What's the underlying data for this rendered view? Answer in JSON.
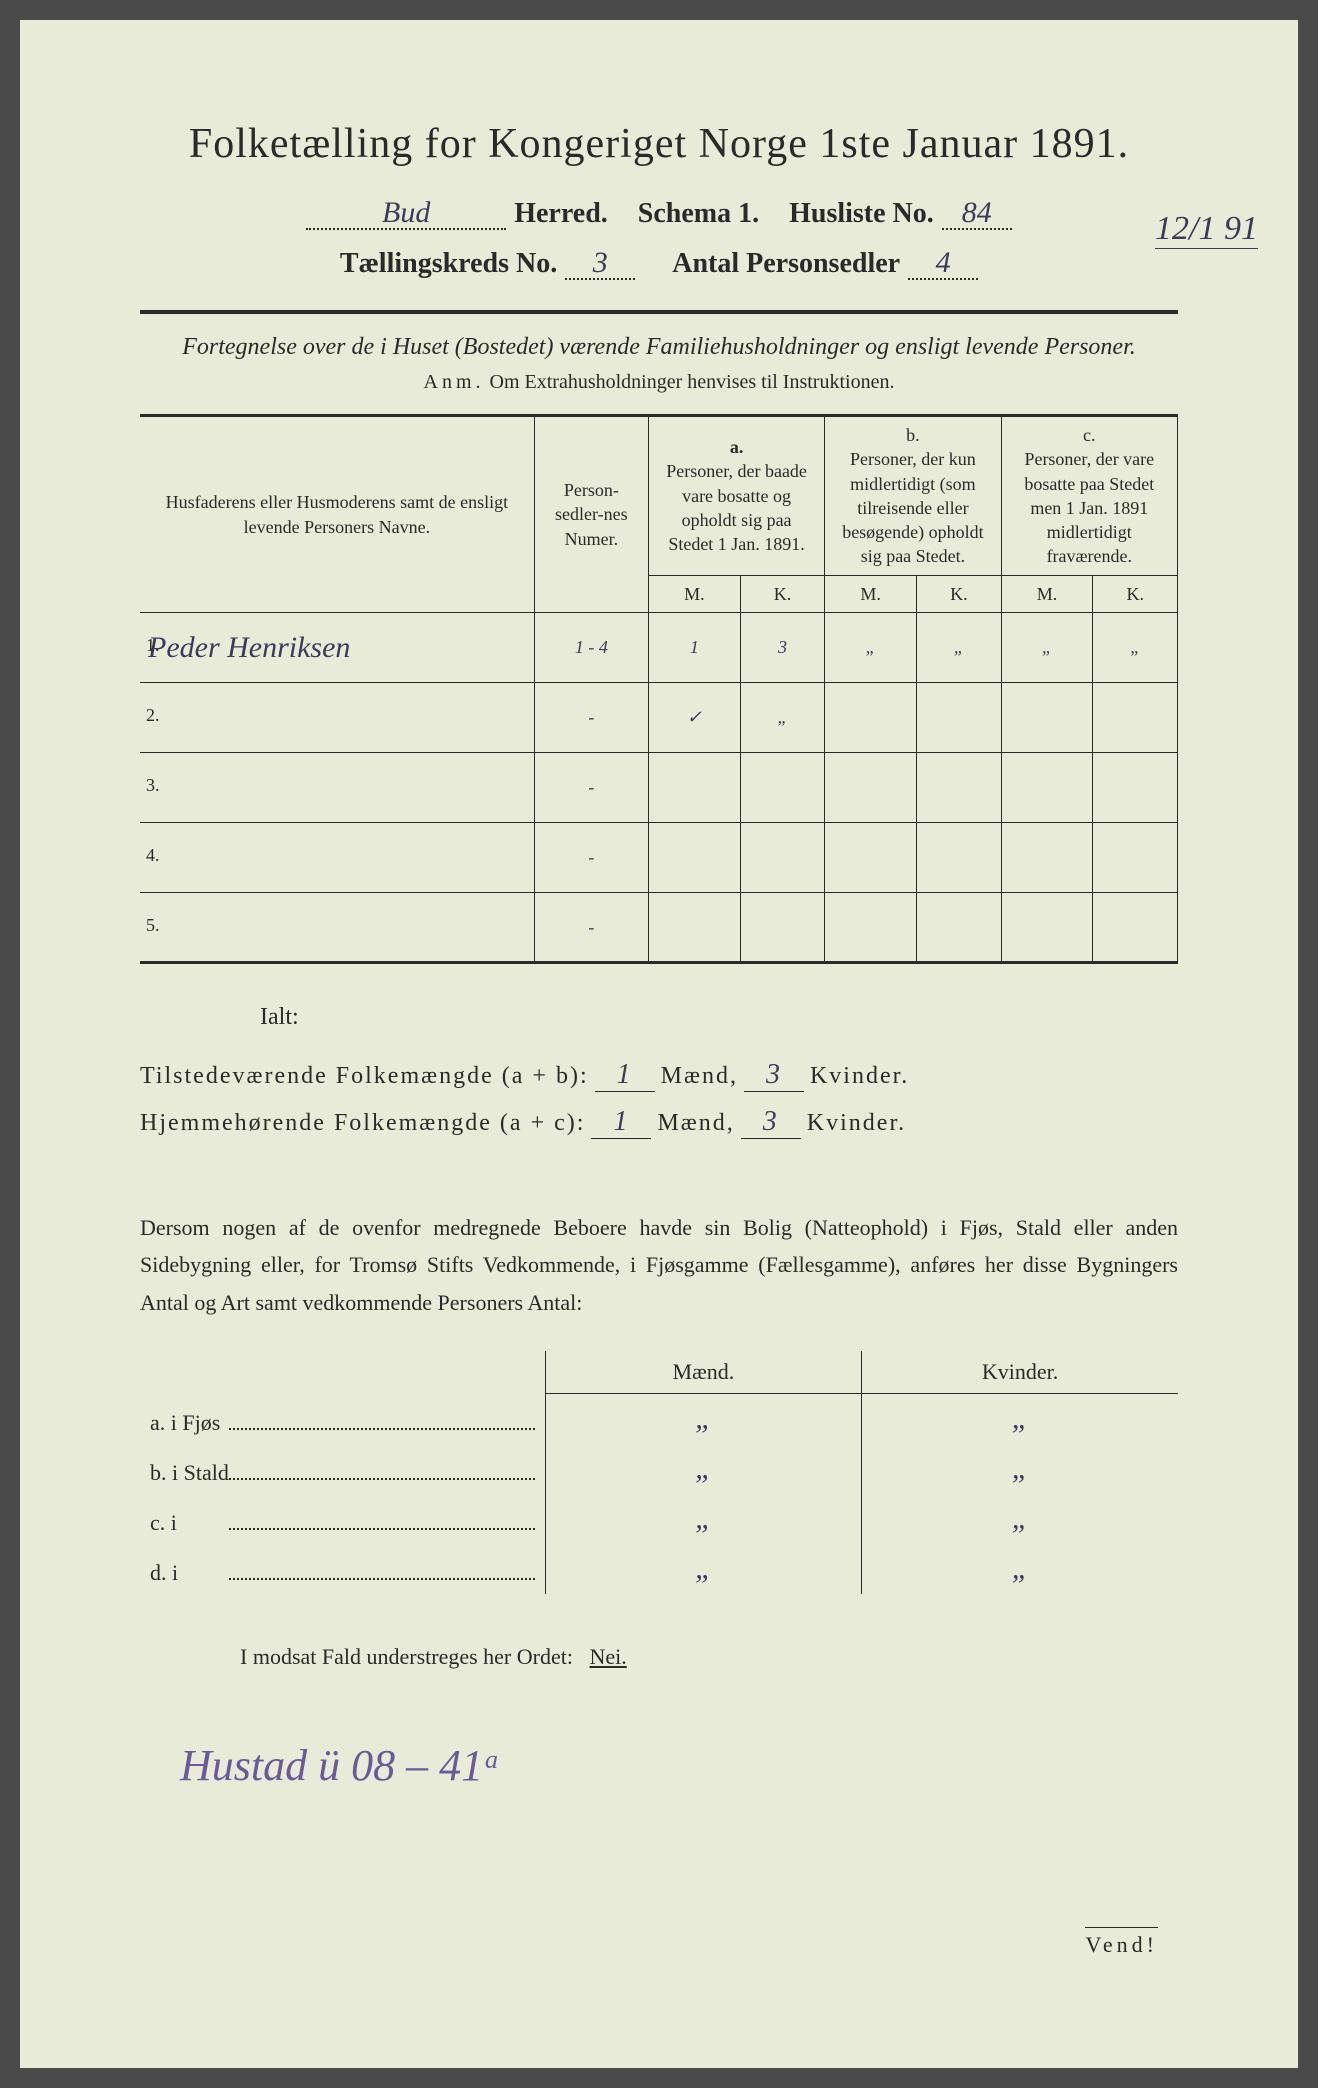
{
  "colors": {
    "paper": "#e8ebd8",
    "ink": "#2a2a2a",
    "handwriting": "#3a3a5a",
    "handwriting_purple": "#6a5a9a"
  },
  "title": "Folketælling for Kongeriget Norge 1ste Januar 1891.",
  "header": {
    "herred_value": "Bud",
    "herred_label": "Herred.",
    "schema_label": "Schema 1.",
    "husliste_label": "Husliste No.",
    "husliste_value": "84",
    "kreds_label": "Tællingskreds No.",
    "kreds_value": "3",
    "antal_label": "Antal Personsedler",
    "antal_value": "4"
  },
  "margin_note": "12/1 91",
  "subtitle": "Fortegnelse over de i Huset (Bostedet) værende Familiehusholdninger og ensligt levende Personer.",
  "anm_label": "Anm.",
  "anm_text": "Om Extrahusholdninger henvises til Instruktionen.",
  "table": {
    "col_name": "Husfaderens eller Husmoderens samt de ensligt levende Personers Navne.",
    "col_num": "Person-sedler-nes Numer.",
    "col_a_label": "a.",
    "col_a": "Personer, der baade vare bosatte og opholdt sig paa Stedet 1 Jan. 1891.",
    "col_b_label": "b.",
    "col_b": "Personer, der kun midlertidigt (som tilreisende eller besøgende) opholdt sig paa Stedet.",
    "col_c_label": "c.",
    "col_c": "Personer, der vare bosatte paa Stedet men 1 Jan. 1891 midlertidigt fraværende.",
    "m": "M.",
    "k": "K.",
    "rows": [
      {
        "n": "1.",
        "name": "Peder Henriksen",
        "num": "1 - 4",
        "aM": "1",
        "aK": "3",
        "bM": "„",
        "bK": "„",
        "cM": "„",
        "cK": "„"
      },
      {
        "n": "2.",
        "name": "",
        "num": "-",
        "aM": "✓",
        "aK": "„",
        "bM": "",
        "bK": "",
        "cM": "",
        "cK": ""
      },
      {
        "n": "3.",
        "name": "",
        "num": "-",
        "aM": "",
        "aK": "",
        "bM": "",
        "bK": "",
        "cM": "",
        "cK": ""
      },
      {
        "n": "4.",
        "name": "",
        "num": "-",
        "aM": "",
        "aK": "",
        "bM": "",
        "bK": "",
        "cM": "",
        "cK": ""
      },
      {
        "n": "5.",
        "name": "",
        "num": "-",
        "aM": "",
        "aK": "",
        "bM": "",
        "bK": "",
        "cM": "",
        "cK": ""
      }
    ]
  },
  "ialt": "Ialt:",
  "sum1_label": "Tilstedeværende Folkemængde (a + b):",
  "sum2_label": "Hjemmehørende Folkemængde (a + c):",
  "maend": "Mænd,",
  "kvinder": "Kvinder.",
  "sum1_m": "1",
  "sum1_k": "3",
  "sum2_m": "1",
  "sum2_k": "3",
  "para": "Dersom nogen af de ovenfor medregnede Beboere havde sin Bolig (Natteophold) i Fjøs, Stald eller anden Sidebygning eller, for Tromsø Stifts Vedkommende, i Fjøsgamme (Fællesgamme), anføres her disse Bygningers Antal og Art samt vedkommende Personers Antal:",
  "side": {
    "maend": "Mænd.",
    "kvinder": "Kvinder.",
    "rows": [
      {
        "lead": "a.  i     Fjøs",
        "m": "„",
        "k": "„"
      },
      {
        "lead": "b.  i     Stald",
        "m": "„",
        "k": "„"
      },
      {
        "lead": "c.  i",
        "m": "„",
        "k": "„"
      },
      {
        "lead": "d.  i",
        "m": "„",
        "k": "„"
      }
    ]
  },
  "nei_line": "I modsat Fald understreges her Ordet:",
  "nei": "Nei.",
  "bottom_hand": "Hustad ü 08 – 41ᵃ",
  "vend": "Vend!"
}
